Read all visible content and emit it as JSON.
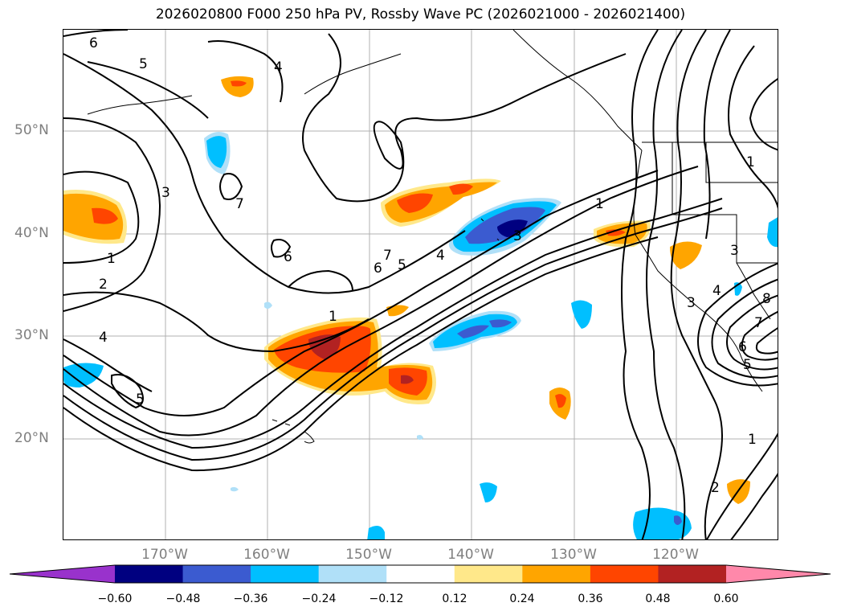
{
  "title": "2026020800 F000 250 hPa PV, Rossby Wave PC (2026021000 - 2026021400)",
  "lat_labels": [
    {
      "text": "50°N",
      "lat": 50
    },
    {
      "text": "40°N",
      "lat": 40
    },
    {
      "text": "30°N",
      "lat": 30
    },
    {
      "text": "20°N",
      "lat": 20
    }
  ],
  "lon_labels": [
    {
      "text": "170°W",
      "lon": -170
    },
    {
      "text": "160°W",
      "lon": -160
    },
    {
      "text": "150°W",
      "lon": -150
    },
    {
      "text": "140°W",
      "lon": -140
    },
    {
      "text": "130°W",
      "lon": -130
    },
    {
      "text": "120°W",
      "lon": -120
    }
  ],
  "colorbar": {
    "ticks": [
      "−0.60",
      "−0.48",
      "−0.36",
      "−0.24",
      "−0.12",
      "0.12",
      "0.24",
      "0.36",
      "0.48",
      "0.60"
    ],
    "colors": {
      "under": "#9932cc",
      "bins": [
        "#000080",
        "#3b5bd0",
        "#00bfff",
        "#b0e0f8",
        "#ffffff",
        "#ffe88a",
        "#ffa500",
        "#ff4500",
        "#b22222"
      ],
      "over": "#ff88aa"
    }
  },
  "contour_labels": [
    "6",
    "5",
    "4",
    "3",
    "1",
    "2",
    "4",
    "5",
    "7",
    "6",
    "1",
    "7",
    "6",
    "5",
    "4",
    "3",
    "1",
    "1",
    "3",
    "4",
    "8",
    "7",
    "6",
    "5",
    "1",
    "2",
    "3"
  ]
}
